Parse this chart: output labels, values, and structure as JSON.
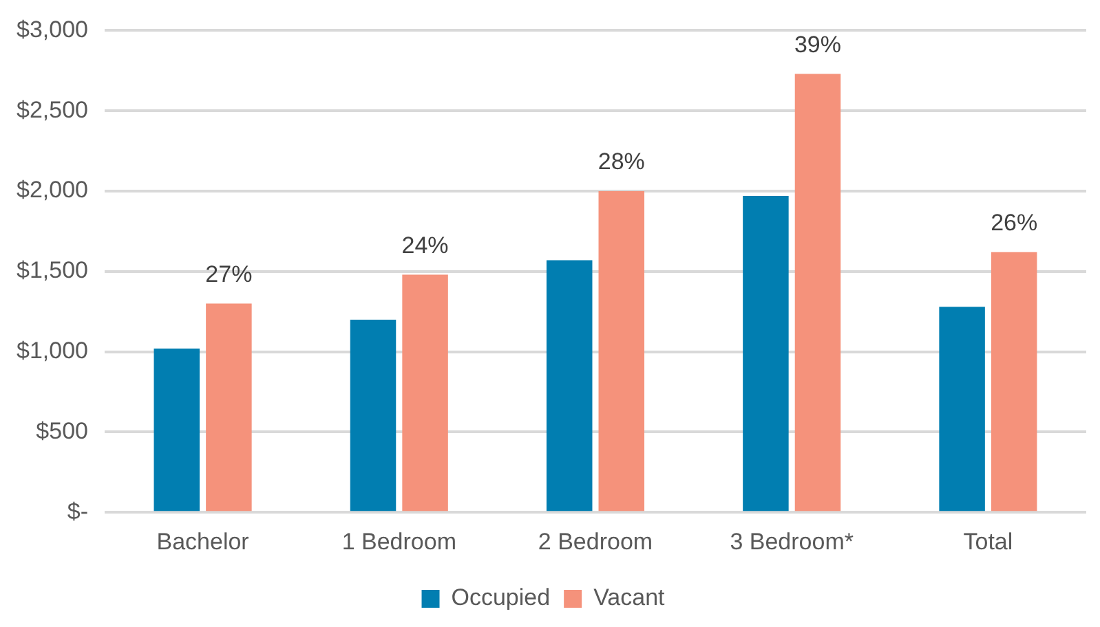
{
  "chart_data": {
    "type": "bar",
    "categories": [
      "Bachelor",
      "1 Bedroom",
      "2 Bedroom",
      "3 Bedroom*",
      "Total"
    ],
    "series": [
      {
        "name": "Occupied",
        "color": "#017eb1",
        "values": [
          1020,
          1200,
          1570,
          1970,
          1280
        ]
      },
      {
        "name": "Vacant",
        "color": "#f5927b",
        "values": [
          1300,
          1480,
          2000,
          2730,
          1620
        ]
      }
    ],
    "annotations": [
      {
        "text": "27%",
        "x": "Bachelor",
        "y": 1300
      },
      {
        "text": "24%",
        "x": "1 Bedroom",
        "y": 1480
      },
      {
        "text": "28%",
        "x": "2 Bedroom",
        "y": 2000
      },
      {
        "text": "39%",
        "x": "3 Bedroom*",
        "y": 2730
      },
      {
        "text": "26%",
        "x": "Total",
        "y": 1620
      }
    ],
    "ylim": [
      0,
      3000
    ],
    "yticks": [
      {
        "value": 0,
        "label": "$-"
      },
      {
        "value": 500,
        "label": "$500"
      },
      {
        "value": 1000,
        "label": "$1,000"
      },
      {
        "value": 1500,
        "label": "$1,500"
      },
      {
        "value": 2000,
        "label": "$2,000"
      },
      {
        "value": 2500,
        "label": "$2,500"
      },
      {
        "value": 3000,
        "label": "$3,000"
      }
    ],
    "grid": "y",
    "legend": "bottom"
  }
}
